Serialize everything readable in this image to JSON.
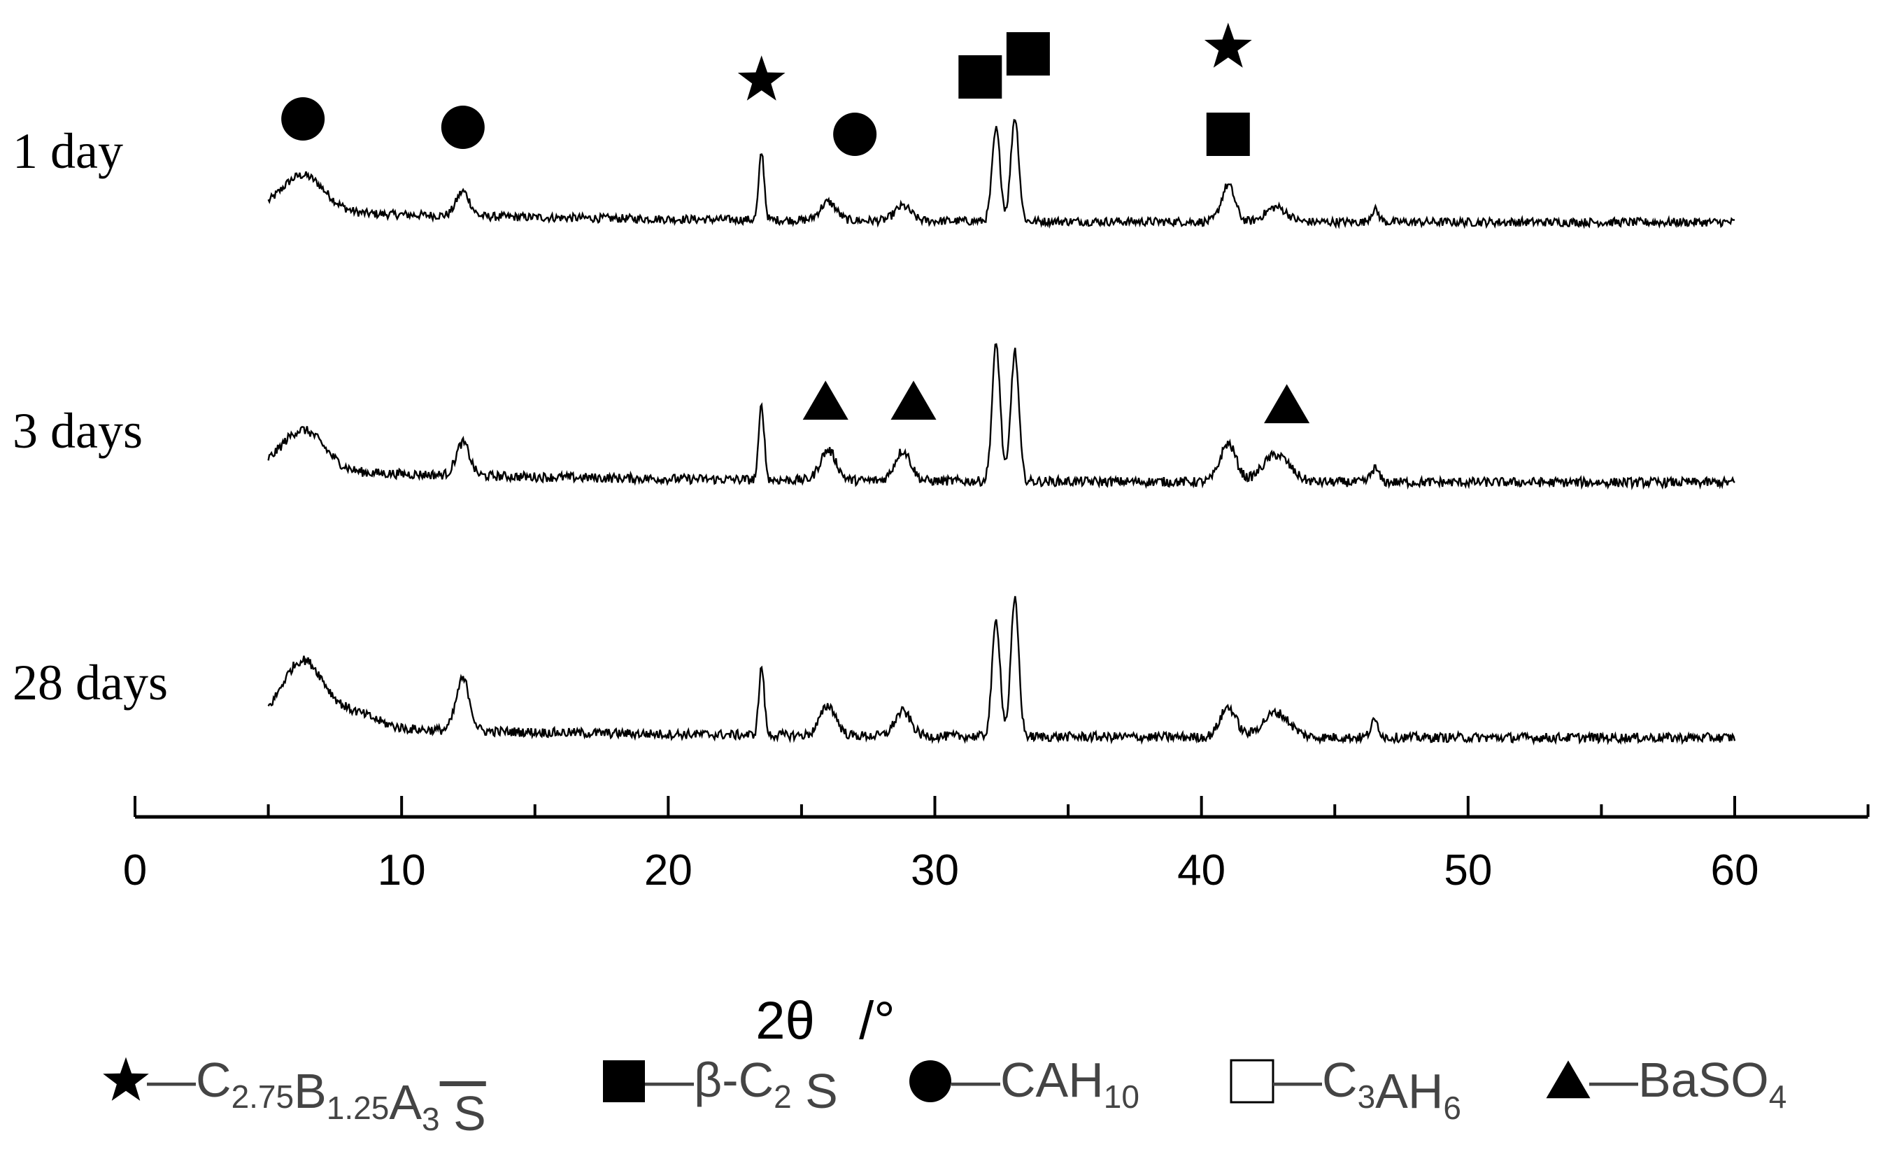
{
  "chart_data": {
    "type": "line",
    "title": "",
    "xlabel": "2θ   /°",
    "ylabel": "",
    "xlim": [
      0,
      65
    ],
    "xticks": [
      0,
      10,
      20,
      30,
      40,
      50,
      60
    ],
    "grid": false,
    "x_range": [
      5,
      60
    ],
    "series": [
      {
        "name": "1 day",
        "baseline": 0.12,
        "peaks": [
          {
            "x": 6.3,
            "h": 0.3,
            "w": 0.8
          },
          {
            "x": 12.3,
            "h": 0.2,
            "w": 0.25
          },
          {
            "x": 23.5,
            "h": 0.55,
            "w": 0.1
          },
          {
            "x": 26.0,
            "h": 0.15,
            "w": 0.3
          },
          {
            "x": 28.8,
            "h": 0.12,
            "w": 0.3
          },
          {
            "x": 32.3,
            "h": 0.75,
            "w": 0.15
          },
          {
            "x": 33.0,
            "h": 0.85,
            "w": 0.15
          },
          {
            "x": 41.0,
            "h": 0.3,
            "w": 0.25
          },
          {
            "x": 42.8,
            "h": 0.12,
            "w": 0.4
          },
          {
            "x": 46.5,
            "h": 0.1,
            "w": 0.15
          }
        ]
      },
      {
        "name": "3 days",
        "baseline": 0.12,
        "peaks": [
          {
            "x": 6.3,
            "h": 0.3,
            "w": 0.8
          },
          {
            "x": 12.3,
            "h": 0.24,
            "w": 0.25
          },
          {
            "x": 23.5,
            "h": 0.55,
            "w": 0.1
          },
          {
            "x": 26.0,
            "h": 0.22,
            "w": 0.3
          },
          {
            "x": 28.8,
            "h": 0.22,
            "w": 0.3
          },
          {
            "x": 32.3,
            "h": 1.0,
            "w": 0.15
          },
          {
            "x": 33.0,
            "h": 0.95,
            "w": 0.15
          },
          {
            "x": 41.0,
            "h": 0.28,
            "w": 0.3
          },
          {
            "x": 42.8,
            "h": 0.2,
            "w": 0.5
          },
          {
            "x": 46.5,
            "h": 0.1,
            "w": 0.15
          }
        ]
      },
      {
        "name": "28 days",
        "baseline": 0.12,
        "peaks": [
          {
            "x": 6.3,
            "h": 0.48,
            "w": 0.8
          },
          {
            "x": 8.3,
            "h": 0.1,
            "w": 0.8
          },
          {
            "x": 12.3,
            "h": 0.38,
            "w": 0.25
          },
          {
            "x": 23.5,
            "h": 0.5,
            "w": 0.1
          },
          {
            "x": 26.0,
            "h": 0.22,
            "w": 0.3
          },
          {
            "x": 28.8,
            "h": 0.18,
            "w": 0.3
          },
          {
            "x": 32.3,
            "h": 0.85,
            "w": 0.15
          },
          {
            "x": 33.0,
            "h": 1.0,
            "w": 0.15
          },
          {
            "x": 41.0,
            "h": 0.22,
            "w": 0.3
          },
          {
            "x": 42.8,
            "h": 0.18,
            "w": 0.5
          },
          {
            "x": 46.5,
            "h": 0.12,
            "w": 0.15
          }
        ]
      }
    ],
    "markers": [
      {
        "series": "1 day",
        "symbol": "circle",
        "x": 6.3
      },
      {
        "series": "1 day",
        "symbol": "circle",
        "x": 12.3
      },
      {
        "series": "1 day",
        "symbol": "star",
        "x": 23.5
      },
      {
        "series": "1 day",
        "symbol": "circle",
        "x": 27.0
      },
      {
        "series": "1 day",
        "symbol": "square",
        "x": 31.7
      },
      {
        "series": "1 day",
        "symbol": "square",
        "x": 33.5
      },
      {
        "series": "1 day",
        "symbol": "star",
        "x": 41.0
      },
      {
        "series": "1 day",
        "symbol": "square",
        "x": 41.0
      },
      {
        "series": "3 days",
        "symbol": "triangle",
        "x": 25.9
      },
      {
        "series": "3 days",
        "symbol": "triangle",
        "x": 29.2
      },
      {
        "series": "3 days",
        "symbol": "triangle",
        "x": 43.2
      }
    ],
    "legend": {
      "placement": "bottom",
      "entries": [
        {
          "symbol": "star",
          "prefix": "—C",
          "sub1": "2.75",
          "mid1": "B",
          "sub2": "1.25",
          "mid2": "A",
          "sub3": "3",
          "suffix": "S"
        },
        {
          "symbol": "square",
          "prefix": "—β-C",
          "sub1": "2",
          "suffix": "S"
        },
        {
          "symbol": "circle",
          "prefix": "—CAH",
          "sub1": "10"
        },
        {
          "symbol": "open-square",
          "prefix": "—C",
          "sub1": "3",
          "mid1": "AH",
          "sub2": "6"
        },
        {
          "symbol": "triangle",
          "prefix": "—BaSO",
          "sub1": "4"
        }
      ]
    },
    "colors": {
      "line": "#000000",
      "background": "#ffffff"
    }
  }
}
